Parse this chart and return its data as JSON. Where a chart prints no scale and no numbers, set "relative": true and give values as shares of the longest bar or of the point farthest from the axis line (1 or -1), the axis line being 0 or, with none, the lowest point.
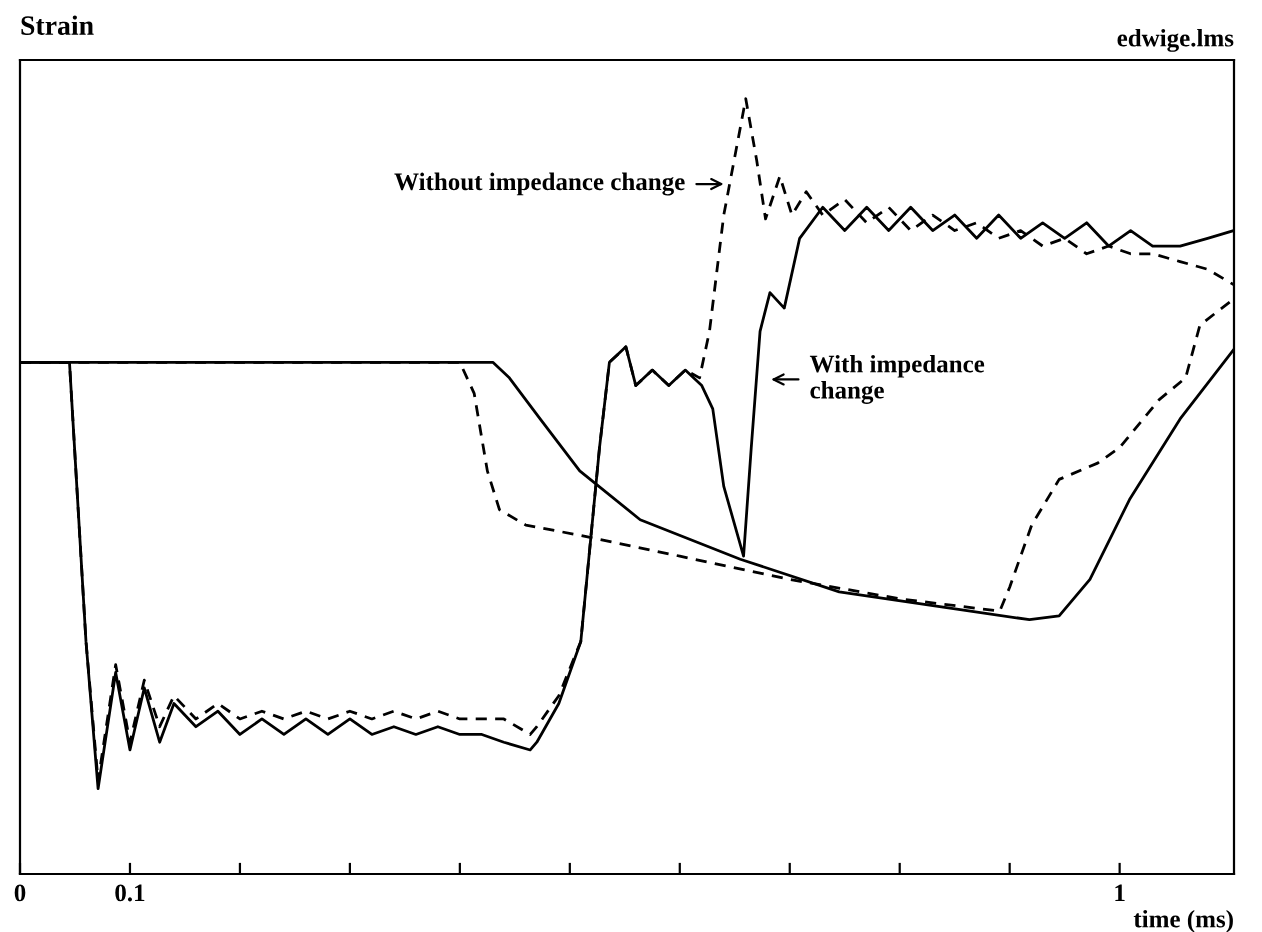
{
  "chart_data": {
    "type": "line",
    "relative": true,
    "ylabel": "Strain",
    "xlabel": "time (ms)",
    "annotations": [
      {
        "text": "Without impedance change",
        "x": 0.645,
        "y": 0.89
      },
      {
        "text": "With impedance\nchange",
        "x": 0.678,
        "y": 0.638
      },
      "edwige.lms"
    ],
    "xlim": [
      0,
      1.104
    ],
    "xticks": [
      0,
      0.1,
      {
        "value": 0.2,
        "label": null
      },
      {
        "value": 0.3,
        "label": null
      },
      {
        "value": 0.4,
        "label": null
      },
      {
        "value": 0.5,
        "label": null
      },
      {
        "value": 0.6,
        "label": null
      },
      {
        "value": 0.7,
        "label": null
      },
      {
        "value": 0.8,
        "label": null
      },
      {
        "value": 0.9,
        "label": null
      },
      1
    ],
    "grid": false,
    "legend": false,
    "series": [
      {
        "color": "#000000",
        "line_style": "solid",
        "x": [
          0,
          0.045,
          0.06,
          0.071,
          0.087,
          0.1,
          0.113,
          0.127,
          0.14,
          0.16,
          0.18,
          0.2,
          0.22,
          0.24,
          0.26,
          0.28,
          0.3,
          0.32,
          0.34,
          0.36,
          0.38,
          0.4,
          0.42,
          0.44,
          0.464,
          0.47,
          0.49,
          0.51,
          0.527,
          0.536,
          0.551,
          0.56,
          0.575,
          0.59,
          0.605,
          0.62,
          0.63,
          0.64,
          0.658,
          0.665,
          0.673,
          0.682,
          0.695,
          0.709,
          0.73,
          0.75,
          0.77,
          0.79,
          0.81,
          0.83,
          0.85,
          0.87,
          0.89,
          0.91,
          0.93,
          0.95,
          0.97,
          0.99,
          1.01,
          1.03,
          1.055,
          1.08,
          1.104
        ],
        "values": [
          0.66,
          0.66,
          0.3,
          0.11,
          0.26,
          0.16,
          0.24,
          0.17,
          0.22,
          0.19,
          0.21,
          0.18,
          0.2,
          0.18,
          0.2,
          0.18,
          0.2,
          0.18,
          0.19,
          0.18,
          0.19,
          0.18,
          0.18,
          0.17,
          0.16,
          0.17,
          0.22,
          0.3,
          0.55,
          0.66,
          0.68,
          0.63,
          0.65,
          0.63,
          0.65,
          0.63,
          0.6,
          0.5,
          0.41,
          0.55,
          0.7,
          0.75,
          0.73,
          0.82,
          0.86,
          0.83,
          0.86,
          0.83,
          0.86,
          0.83,
          0.85,
          0.82,
          0.85,
          0.82,
          0.84,
          0.82,
          0.84,
          0.81,
          0.83,
          0.81,
          0.81,
          0.82,
          0.83
        ]
      },
      {
        "color": "#000000",
        "line_style": "dashed",
        "x": [
          0,
          0.045,
          0.06,
          0.071,
          0.087,
          0.1,
          0.113,
          0.127,
          0.14,
          0.16,
          0.18,
          0.2,
          0.22,
          0.24,
          0.26,
          0.28,
          0.3,
          0.32,
          0.34,
          0.36,
          0.38,
          0.4,
          0.42,
          0.44,
          0.464,
          0.47,
          0.49,
          0.51,
          0.527,
          0.536,
          0.551,
          0.56,
          0.575,
          0.59,
          0.605,
          0.618,
          0.627,
          0.64,
          0.66,
          0.67,
          0.678,
          0.691,
          0.702,
          0.715,
          0.73,
          0.75,
          0.77,
          0.79,
          0.81,
          0.83,
          0.85,
          0.87,
          0.89,
          0.91,
          0.93,
          0.95,
          0.97,
          0.99,
          1.01,
          1.03,
          1.055,
          1.08,
          1.104
        ],
        "values": [
          0.66,
          0.66,
          0.3,
          0.12,
          0.27,
          0.17,
          0.25,
          0.19,
          0.23,
          0.2,
          0.22,
          0.2,
          0.21,
          0.2,
          0.21,
          0.2,
          0.21,
          0.2,
          0.21,
          0.2,
          0.21,
          0.2,
          0.2,
          0.2,
          0.18,
          0.19,
          0.23,
          0.3,
          0.55,
          0.66,
          0.68,
          0.63,
          0.65,
          0.63,
          0.65,
          0.64,
          0.7,
          0.85,
          1.0,
          0.92,
          0.845,
          0.9,
          0.85,
          0.88,
          0.85,
          0.87,
          0.84,
          0.86,
          0.83,
          0.85,
          0.83,
          0.84,
          0.82,
          0.83,
          0.81,
          0.82,
          0.8,
          0.81,
          0.8,
          0.8,
          0.79,
          0.78,
          0.76
        ]
      },
      {
        "color": "#000000",
        "line_style": "dashed",
        "x": [
          0,
          0.4,
          0.413,
          0.425,
          0.436,
          0.46,
          0.509,
          0.6,
          0.7,
          0.8,
          0.891,
          0.9,
          0.92,
          0.945,
          0.98,
          1.0,
          1.036,
          1.06,
          1.073,
          1.104
        ],
        "values": [
          0.66,
          0.66,
          0.62,
          0.52,
          0.47,
          0.45,
          0.437,
          0.41,
          0.38,
          0.355,
          0.339,
          0.37,
          0.45,
          0.509,
          0.53,
          0.55,
          0.612,
          0.64,
          0.708,
          0.742
        ]
      },
      {
        "color": "#000000",
        "line_style": "solid",
        "x": [
          0,
          0.43,
          0.445,
          0.473,
          0.509,
          0.564,
          0.655,
          0.745,
          0.855,
          0.918,
          0.945,
          0.973,
          1.009,
          1.055,
          1.104
        ],
        "values": [
          0.66,
          0.66,
          0.64,
          0.587,
          0.52,
          0.457,
          0.406,
          0.364,
          0.341,
          0.328,
          0.333,
          0.38,
          0.483,
          0.587,
          0.677
        ]
      }
    ]
  }
}
